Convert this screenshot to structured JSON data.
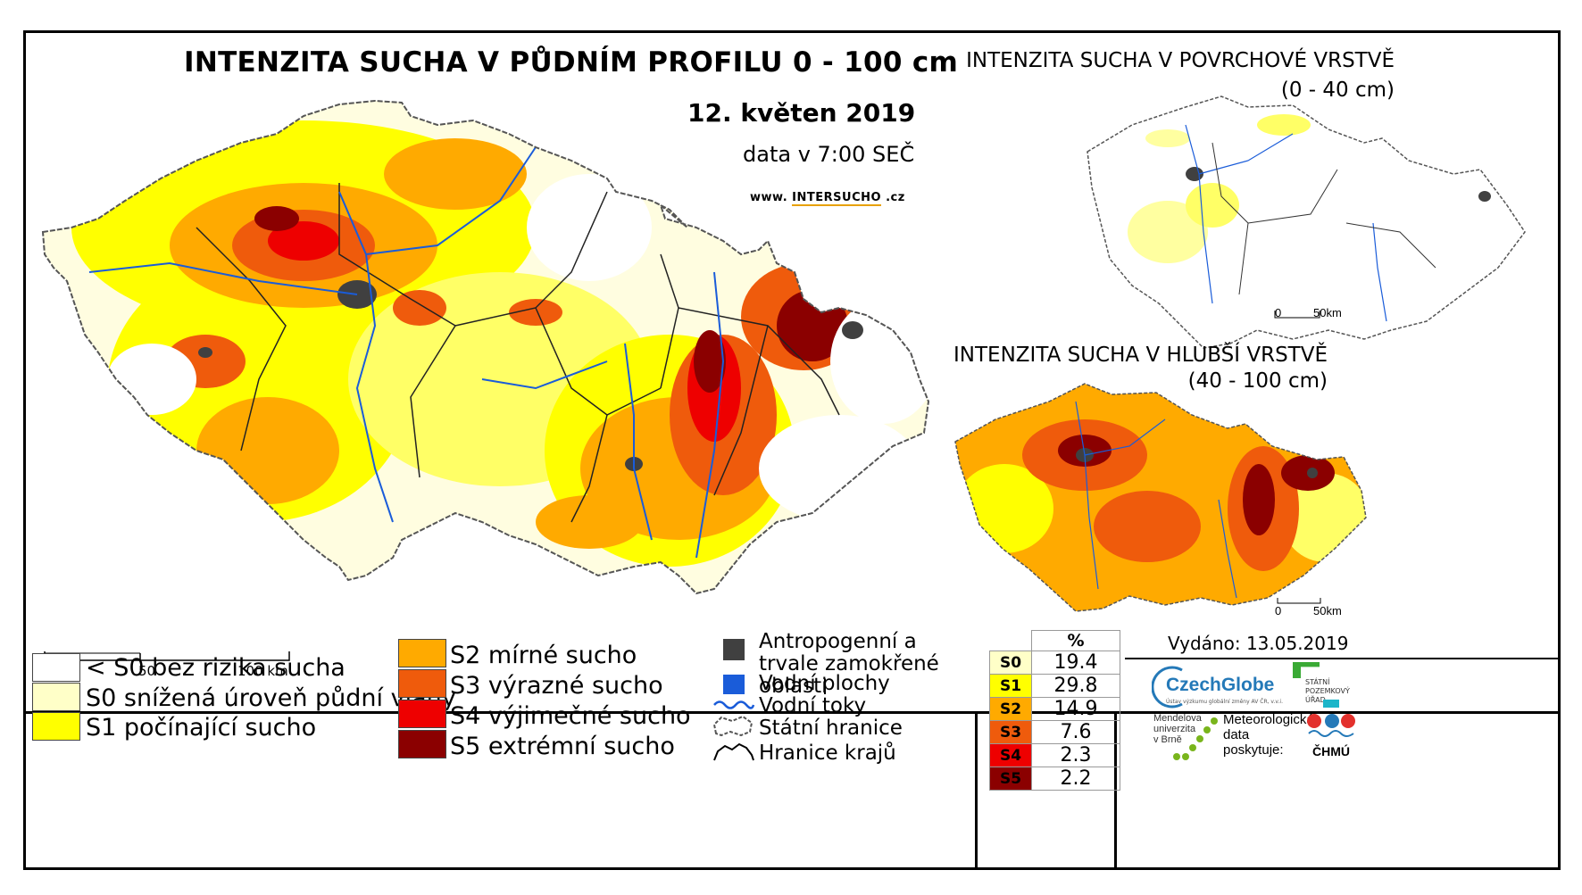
{
  "header": {
    "title": "INTENZITA SUCHA V PŮDNÍM PROFILU 0 - 100 cm",
    "date": "12. květen 2019",
    "data_time": "data v 7:00 SEČ",
    "website_prefix": "www. ",
    "website_brand": "INTERSUCHO",
    "website_suffix": " .cz"
  },
  "main_scale": {
    "s0": "0",
    "s1": "50",
    "s2": "100 km"
  },
  "inset_top": {
    "title_line1": "INTENZITA SUCHA V POVRCHOVÉ VRSTVĚ",
    "title_line2": "(0 - 40 cm)",
    "scale_0": "0",
    "scale_1": "50km"
  },
  "inset_bottom": {
    "title_line1": "INTENZITA SUCHA V HLUBŠÍ VRSTVĚ",
    "title_line2": "(40 - 100 cm)",
    "scale_0": "0",
    "scale_1": "50km"
  },
  "legend": {
    "classes": [
      {
        "label": "< S0 bez rizika sucha",
        "color": "#ffffff"
      },
      {
        "label": "S0 snížená úroveň půdní vláhy",
        "color": "#ffffc8"
      },
      {
        "label": "S1 počínající sucho",
        "color": "#ffff00"
      },
      {
        "label": "S2 mírné sucho",
        "color": "#ffaa00"
      },
      {
        "label": "S3 výrazné sucho",
        "color": "#ef5b0c"
      },
      {
        "label": "S4 výjimečné sucho",
        "color": "#ee0000"
      },
      {
        "label": "S5 extrémní sucho",
        "color": "#8b0000"
      }
    ],
    "other": {
      "anthropogenic": "Antropogenní a trvale zamokřené oblasti",
      "water_areas": "Vodní plochy",
      "water_courses": "Vodní toky",
      "state_border": "Státní hranice",
      "region_border": "Hranice krajů"
    }
  },
  "percent_table": {
    "header": "%",
    "rows": [
      {
        "code": "S0",
        "value": "19.4",
        "color": "#ffffc8"
      },
      {
        "code": "S1",
        "value": "29.8",
        "color": "#ffff00"
      },
      {
        "code": "S2",
        "value": "14.9",
        "color": "#ffaa00"
      },
      {
        "code": "S3",
        "value": "7.6",
        "color": "#ef5b0c"
      },
      {
        "code": "S4",
        "value": "2.3",
        "color": "#ee0000"
      },
      {
        "code": "S5",
        "value": "2.2",
        "color": "#8b0000"
      }
    ]
  },
  "credits": {
    "issued": "Vydáno: 13.05.2019",
    "czechglobe": "CzechGlobe",
    "czechglobe_sub": "Ústav výzkumu globální změny AV ČR, v.v.i.",
    "spu_1": "STÁTNÍ",
    "spu_2": "POZEMKOVÝ",
    "spu_3": "ÚŘAD",
    "mendel_1": "Mendelova",
    "mendel_2": "univerzita",
    "mendel_3": "v Brně",
    "met_1": "Meteorologická",
    "met_2": "data",
    "met_3": "poskytuje:",
    "chmu": "ČHMÚ"
  }
}
